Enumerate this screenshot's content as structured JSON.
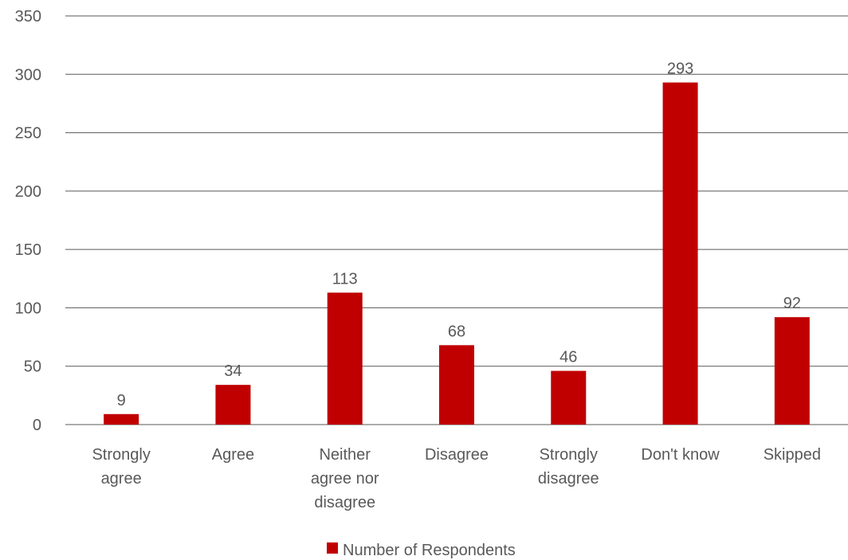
{
  "chart_data": {
    "type": "bar",
    "categories": [
      "Strongly agree",
      "Agree",
      "Neither agree nor disagree",
      "Disagree",
      "Strongly disagree",
      "Don't know",
      "Skipped"
    ],
    "category_lines": [
      [
        "Strongly",
        "agree"
      ],
      [
        "Agree"
      ],
      [
        "Neither",
        "agree nor",
        "disagree"
      ],
      [
        "Disagree"
      ],
      [
        "Strongly",
        "disagree"
      ],
      [
        "Don't know"
      ],
      [
        "Skipped"
      ]
    ],
    "series": [
      {
        "name": "Number of Respondents",
        "values": [
          9,
          34,
          113,
          68,
          46,
          293,
          92
        ],
        "color": "#C00000"
      }
    ],
    "yticks": [
      "0",
      "50",
      "100",
      "150",
      "200",
      "250",
      "300",
      "350"
    ],
    "ylim": [
      0,
      350
    ],
    "grid": true,
    "data_labels": true,
    "legend_position": "bottom",
    "title": "",
    "xlabel": "",
    "ylabel": "",
    "gridline_color": "#595959",
    "text_color": "#595959"
  }
}
